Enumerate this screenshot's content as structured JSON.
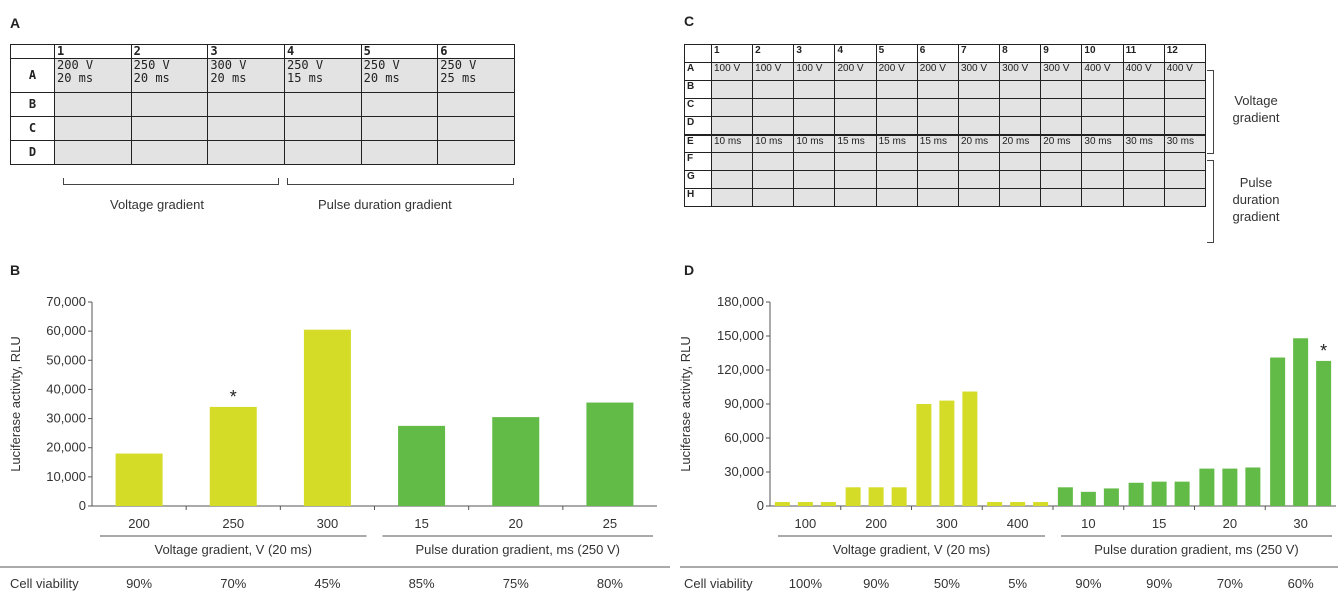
{
  "panels": {
    "A": {
      "letter": "A",
      "col_headers": [
        "1",
        "2",
        "3",
        "4",
        "5",
        "6"
      ],
      "row_headers": [
        "A",
        "B",
        "C",
        "D"
      ],
      "row_a_cells": [
        [
          "200 V",
          "20 ms"
        ],
        [
          "250 V",
          "20 ms"
        ],
        [
          "300 V",
          "20 ms"
        ],
        [
          "250 V",
          "15 ms"
        ],
        [
          "250 V",
          "20 ms"
        ],
        [
          "250 V",
          "25 ms"
        ]
      ],
      "bracket_labels": [
        "Voltage gradient",
        "Pulse duration gradient"
      ]
    },
    "C": {
      "letter": "C",
      "col_headers": [
        "1",
        "2",
        "3",
        "4",
        "5",
        "6",
        "7",
        "8",
        "9",
        "10",
        "11",
        "12"
      ],
      "row_headers": [
        "A",
        "B",
        "C",
        "D",
        "E",
        "F",
        "G",
        "H"
      ],
      "row_a_cells": [
        "100 V",
        "100 V",
        "100 V",
        "200 V",
        "200 V",
        "200 V",
        "300 V",
        "300 V",
        "300 V",
        "400 V",
        "400 V",
        "400 V"
      ],
      "row_e_cells": [
        "10 ms",
        "10 ms",
        "10 ms",
        "15 ms",
        "15 ms",
        "15 ms",
        "20 ms",
        "20 ms",
        "20 ms",
        "30 ms",
        "30 ms",
        "30 ms"
      ],
      "bracket_labels": [
        "Voltage\ngradient",
        "Pulse\nduration\ngradient"
      ]
    },
    "B": {
      "letter": "B"
    },
    "D": {
      "letter": "D"
    }
  },
  "chart_data": [
    {
      "panel": "B",
      "type": "bar",
      "ylabel": "Luciferase activity, RLU",
      "ylim": [
        0,
        70000
      ],
      "yticks": [
        0,
        10000,
        20000,
        30000,
        40000,
        50000,
        60000,
        70000
      ],
      "ytick_labels": [
        "0",
        "10,000",
        "20,000",
        "30,000",
        "40,000",
        "50,000",
        "60,000",
        "70,000"
      ],
      "categories": [
        "200",
        "250",
        "300",
        "15",
        "20",
        "25"
      ],
      "values": [
        18000,
        34000,
        60500,
        27500,
        30500,
        35500
      ],
      "bar_colors": [
        "#d4dc28",
        "#d4dc28",
        "#d4dc28",
        "#63bb47",
        "#63bb47",
        "#63bb47"
      ],
      "group_labels": [
        "Voltage gradient, V (20 ms)",
        "Pulse duration gradient, ms (250 V)"
      ],
      "annotation": {
        "text": "*",
        "category": "250"
      },
      "cell_viability_label": "Cell viability",
      "cell_viability": [
        "90%",
        "70%",
        "45%",
        "85%",
        "75%",
        "80%"
      ],
      "grid": false
    },
    {
      "panel": "D",
      "type": "bar",
      "ylabel": "Luciferase activity, RLU",
      "ylim": [
        0,
        180000
      ],
      "yticks": [
        0,
        30000,
        60000,
        90000,
        120000,
        150000,
        180000
      ],
      "ytick_labels": [
        "0",
        "30,000",
        "60,000",
        "90,000",
        "120,000",
        "150,000",
        "180,000"
      ],
      "categories": [
        "100",
        "200",
        "300",
        "400",
        "10",
        "15",
        "20",
        "30"
      ],
      "replicates": 3,
      "values": [
        [
          3500,
          3500,
          3500
        ],
        [
          16500,
          16500,
          16500
        ],
        [
          90000,
          93000,
          101000
        ],
        [
          3500,
          3500,
          3500
        ],
        [
          16500,
          12500,
          15500
        ],
        [
          20500,
          21500,
          21500
        ],
        [
          33000,
          33000,
          34000
        ],
        [
          131000,
          148000,
          128000
        ]
      ],
      "bar_colors": [
        "#d4dc28",
        "#d4dc28",
        "#d4dc28",
        "#d4dc28",
        "#63bb47",
        "#63bb47",
        "#63bb47",
        "#63bb47"
      ],
      "group_labels": [
        "Voltage gradient, V (20 ms)",
        "Pulse duration gradient, ms (250 V)"
      ],
      "annotation": {
        "text": "*",
        "category": "30",
        "replicate": 2
      },
      "cell_viability_label": "Cell viability",
      "cell_viability": [
        "100%",
        "90%",
        "50%",
        "5%",
        "90%",
        "90%",
        "70%",
        "60%"
      ],
      "grid": false
    }
  ]
}
